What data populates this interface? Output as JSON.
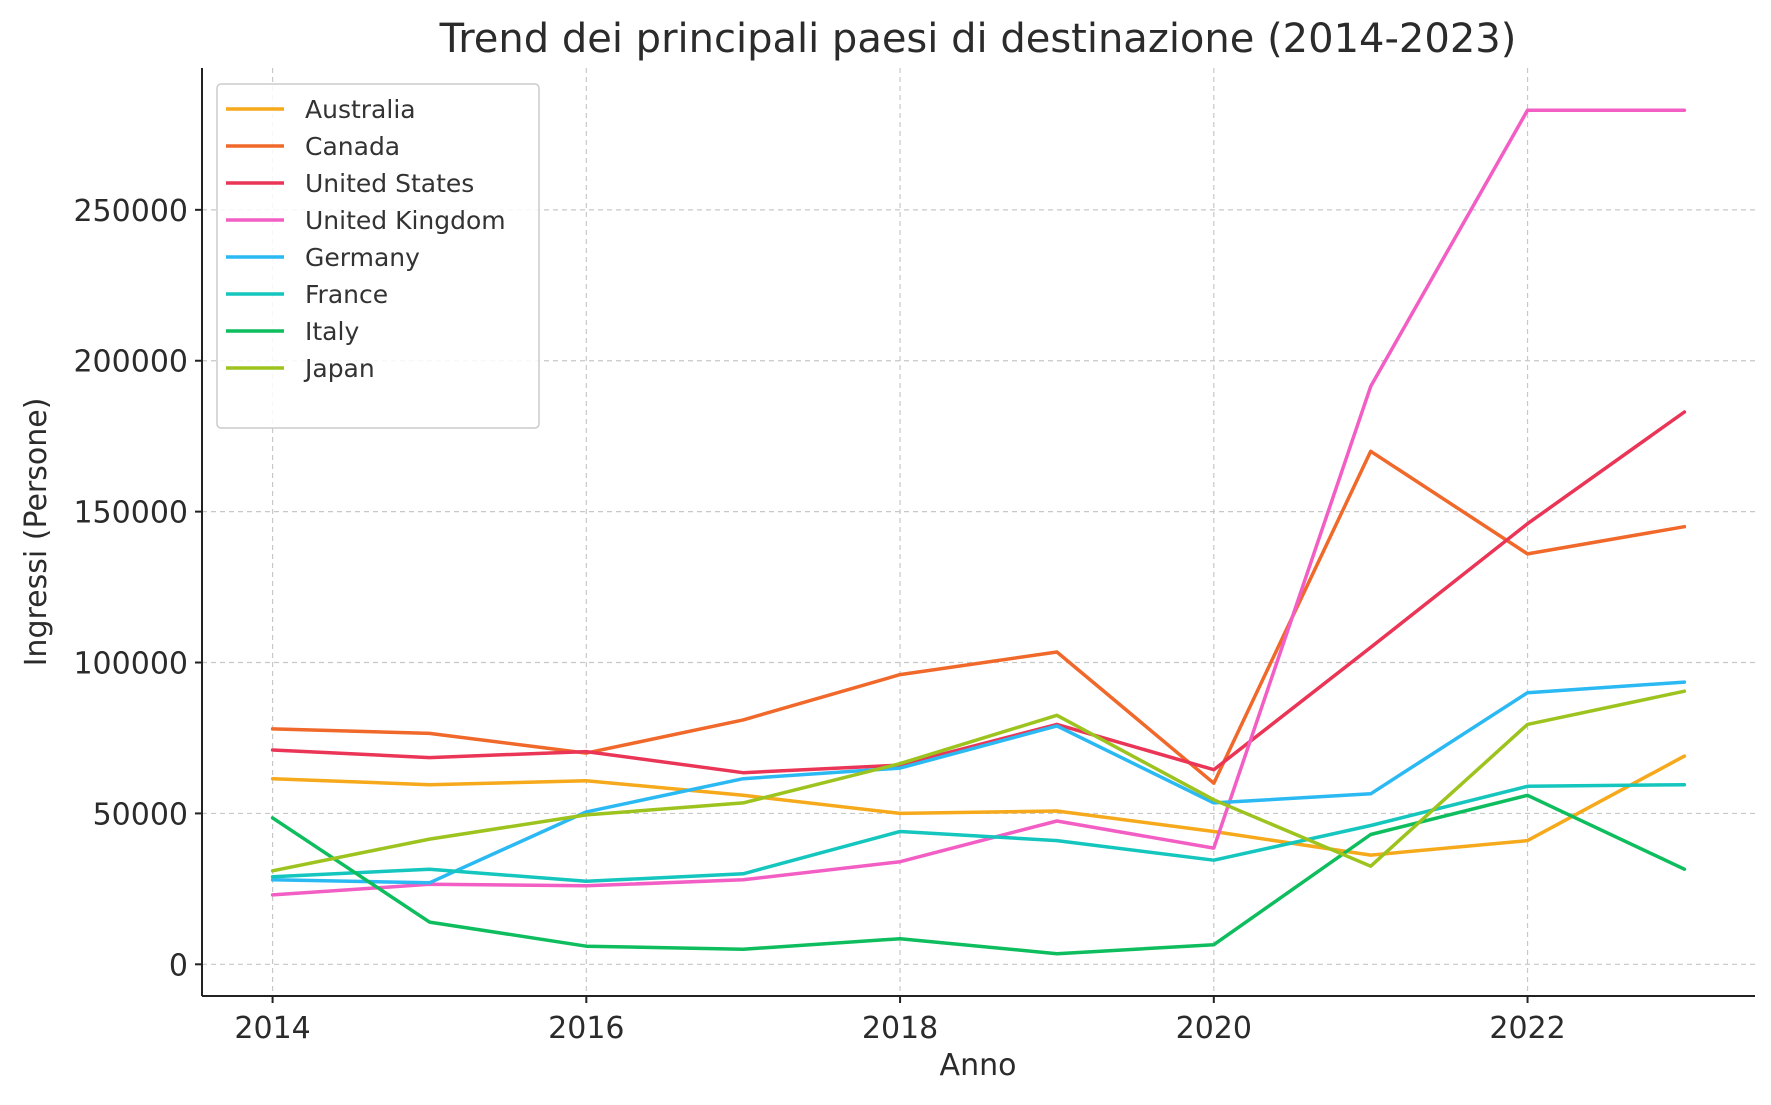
{
  "chart_data": {
    "type": "line",
    "title": "Trend dei principali paesi di destinazione (2014-2023)",
    "xlabel": "Anno",
    "ylabel": "Ingressi (Persone)",
    "x": [
      2014,
      2015,
      2016,
      2017,
      2018,
      2019,
      2020,
      2021,
      2022,
      2023
    ],
    "xlim": [
      2013.55,
      2023.45
    ],
    "ylim": [
      -10500,
      297000
    ],
    "x_ticks": [
      2014,
      2016,
      2018,
      2020,
      2022
    ],
    "y_ticks": [
      0,
      50000,
      100000,
      150000,
      200000,
      250000
    ],
    "grid": true,
    "legend_position": "top-left",
    "series": [
      {
        "name": "Australia",
        "color": "#f5a91b",
        "values": [
          61500,
          59500,
          60800,
          56000,
          50000,
          50800,
          44000,
          36200,
          41000,
          69000
        ]
      },
      {
        "name": "Canada",
        "color": "#f0682a",
        "values": [
          78000,
          76500,
          70000,
          81000,
          96000,
          103500,
          60000,
          170000,
          136000,
          145000
        ]
      },
      {
        "name": "United States",
        "color": "#ea3556",
        "values": [
          71000,
          68500,
          70500,
          63500,
          66000,
          79500,
          64500,
          105000,
          146000,
          183000
        ]
      },
      {
        "name": "United Kingdom",
        "color": "#f25ec4",
        "values": [
          23000,
          26500,
          26000,
          28000,
          34000,
          47500,
          38500,
          191500,
          283000,
          283000
        ]
      },
      {
        "name": "Germany",
        "color": "#2ab9f3",
        "values": [
          28000,
          27000,
          50500,
          61500,
          65000,
          79000,
          53500,
          56500,
          90000,
          93500
        ]
      },
      {
        "name": "France",
        "color": "#14c6be",
        "values": [
          29000,
          31500,
          27500,
          30000,
          44000,
          41000,
          34500,
          46000,
          59000,
          59500
        ]
      },
      {
        "name": "Italy",
        "color": "#0dbd5e",
        "values": [
          48500,
          14000,
          6000,
          5000,
          8500,
          3500,
          6500,
          43000,
          56000,
          31500
        ]
      },
      {
        "name": "Japan",
        "color": "#9dc31e",
        "values": [
          31000,
          41500,
          49500,
          53500,
          66500,
          82500,
          54500,
          32500,
          79500,
          90500
        ]
      }
    ]
  }
}
